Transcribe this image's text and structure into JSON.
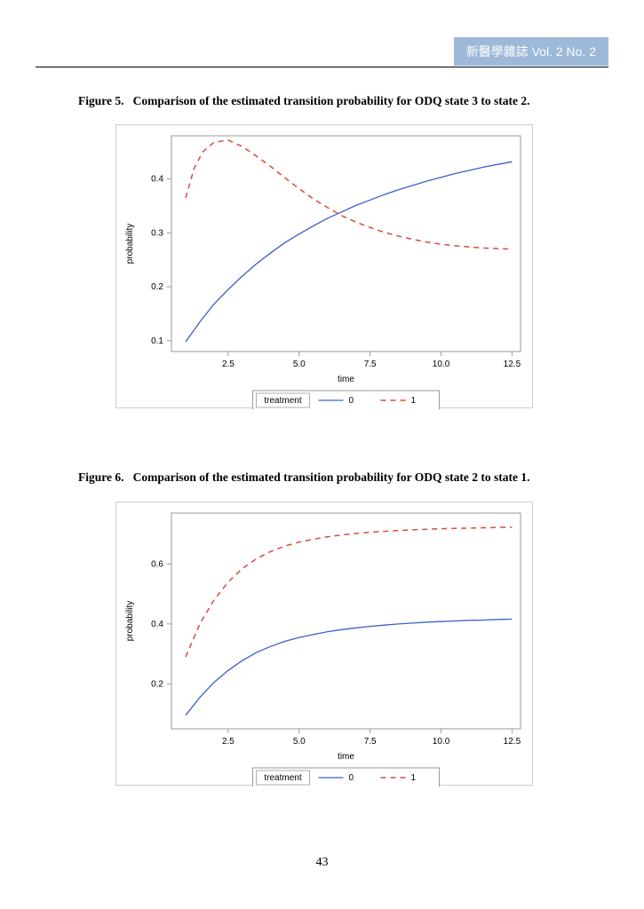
{
  "header": {
    "badge_cjk": "新醫學雜誌",
    "badge_vol": "Vol. 2 No. 2",
    "badge_bg": "#9db8d9",
    "badge_fg": "#ffffff"
  },
  "page_number": "43",
  "figure5": {
    "caption_prefix": "Figure 5.",
    "caption": "Comparison of the estimated transition probability for ODQ state 3 to state 2.",
    "type": "line",
    "xlabel": "time",
    "ylabel": "probability",
    "xlim": [
      0.5,
      12.8
    ],
    "ylim": [
      0.08,
      0.48
    ],
    "xticks": [
      2.5,
      5.0,
      7.5,
      10.0,
      12.5
    ],
    "yticks": [
      0.1,
      0.2,
      0.3,
      0.4
    ],
    "plot_bg": "#ffffff",
    "grid_color": "#d9d9d9",
    "border_color": "#9a9a9a",
    "legend_title": "treatment",
    "series": [
      {
        "name": "0",
        "color": "#3a60c8",
        "dash": "none",
        "width": 1.3,
        "x": [
          1.0,
          1.5,
          2.0,
          2.5,
          3.0,
          3.5,
          4.0,
          4.5,
          5.0,
          5.5,
          6.0,
          6.5,
          7.0,
          7.5,
          8.0,
          8.5,
          9.0,
          9.5,
          10.0,
          10.5,
          11.0,
          11.5,
          12.0,
          12.5
        ],
        "y": [
          0.098,
          0.135,
          0.168,
          0.195,
          0.22,
          0.243,
          0.263,
          0.282,
          0.298,
          0.313,
          0.327,
          0.339,
          0.351,
          0.361,
          0.371,
          0.38,
          0.388,
          0.396,
          0.403,
          0.41,
          0.416,
          0.422,
          0.427,
          0.432
        ]
      },
      {
        "name": "1",
        "color": "#d54c3c",
        "dash": "6,5",
        "width": 1.5,
        "x": [
          1.0,
          1.3,
          1.6,
          2.0,
          2.5,
          3.0,
          3.5,
          4.0,
          4.5,
          5.0,
          5.5,
          6.0,
          6.5,
          7.0,
          7.5,
          8.0,
          8.5,
          9.0,
          9.5,
          10.0,
          10.5,
          11.0,
          11.5,
          12.0,
          12.5
        ],
        "y": [
          0.365,
          0.42,
          0.45,
          0.468,
          0.472,
          0.46,
          0.442,
          0.423,
          0.402,
          0.382,
          0.363,
          0.347,
          0.332,
          0.32,
          0.31,
          0.301,
          0.294,
          0.288,
          0.283,
          0.279,
          0.276,
          0.274,
          0.272,
          0.271,
          0.27
        ]
      }
    ]
  },
  "figure6": {
    "caption_prefix": "Figure 6.",
    "caption": "Comparison of the estimated transition probability for ODQ state 2 to state 1.",
    "type": "line",
    "xlabel": "time",
    "ylabel": "probability",
    "xlim": [
      0.5,
      12.8
    ],
    "ylim": [
      0.05,
      0.77
    ],
    "xticks": [
      2.5,
      5.0,
      7.5,
      10.0,
      12.5
    ],
    "yticks": [
      0.2,
      0.4,
      0.6
    ],
    "plot_bg": "#ffffff",
    "grid_color": "#d9d9d9",
    "border_color": "#9a9a9a",
    "legend_title": "treatment",
    "series": [
      {
        "name": "0",
        "color": "#3a60c8",
        "dash": "none",
        "width": 1.3,
        "x": [
          1.0,
          1.5,
          2.0,
          2.5,
          3.0,
          3.5,
          4.0,
          4.5,
          5.0,
          5.5,
          6.0,
          6.5,
          7.0,
          7.5,
          8.0,
          8.5,
          9.0,
          9.5,
          10.0,
          10.5,
          11.0,
          11.5,
          12.0,
          12.5
        ],
        "y": [
          0.095,
          0.155,
          0.205,
          0.245,
          0.278,
          0.305,
          0.325,
          0.342,
          0.355,
          0.365,
          0.374,
          0.381,
          0.387,
          0.392,
          0.396,
          0.4,
          0.403,
          0.406,
          0.408,
          0.41,
          0.412,
          0.413,
          0.415,
          0.416
        ]
      },
      {
        "name": "1",
        "color": "#d54c3c",
        "dash": "6,5",
        "width": 1.5,
        "x": [
          1.0,
          1.5,
          2.0,
          2.5,
          3.0,
          3.5,
          4.0,
          4.5,
          5.0,
          5.5,
          6.0,
          6.5,
          7.0,
          7.5,
          8.0,
          8.5,
          9.0,
          9.5,
          10.0,
          10.5,
          11.0,
          11.5,
          12.0,
          12.5
        ],
        "y": [
          0.29,
          0.4,
          0.48,
          0.54,
          0.585,
          0.618,
          0.642,
          0.66,
          0.673,
          0.683,
          0.691,
          0.697,
          0.702,
          0.706,
          0.709,
          0.712,
          0.714,
          0.716,
          0.718,
          0.719,
          0.72,
          0.721,
          0.722,
          0.723
        ]
      }
    ]
  }
}
